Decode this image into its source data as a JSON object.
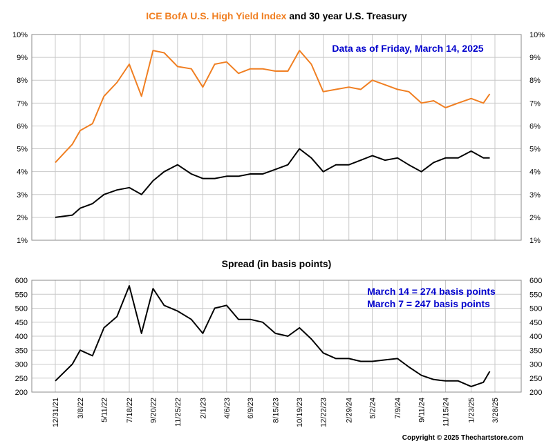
{
  "chart_data": [
    {
      "type": "line",
      "title_parts": [
        {
          "text": "ICE BofA U.S. High Yield Index",
          "color": "#f07f22"
        },
        {
          "text": " and 30 year U.S. Treasury",
          "color": "#000000"
        }
      ],
      "annotation": "Data as of Friday, March 14, 2025",
      "annotation_color": "#0000cc",
      "y_ticks": [
        "1%",
        "2%",
        "3%",
        "4%",
        "5%",
        "6%",
        "7%",
        "8%",
        "9%",
        "10%"
      ],
      "ylim": [
        1,
        10
      ],
      "grid": true,
      "x": [
        "12/31/21",
        "2/15/22",
        "3/8/22",
        "4/10/22",
        "5/11/22",
        "6/15/22",
        "7/18/22",
        "8/20/22",
        "9/20/22",
        "10/20/22",
        "11/25/22",
        "1/1/23",
        "2/1/23",
        "3/5/23",
        "4/6/23",
        "5/8/23",
        "6/9/23",
        "7/12/23",
        "8/15/23",
        "9/18/23",
        "10/19/23",
        "11/20/23",
        "12/22/23",
        "1/25/24",
        "2/29/24",
        "4/1/24",
        "5/2/24",
        "6/5/24",
        "7/9/24",
        "8/8/24",
        "9/11/24",
        "10/14/24",
        "11/15/24",
        "12/19/24",
        "1/23/25",
        "2/25/25",
        "3/14/25"
      ],
      "series": [
        {
          "name": "ICE BofA U.S. High Yield Index",
          "color": "#f07f22",
          "values": [
            4.4,
            5.2,
            5.8,
            6.1,
            7.3,
            7.9,
            8.7,
            7.3,
            9.3,
            9.2,
            8.6,
            8.5,
            7.7,
            8.7,
            8.8,
            8.3,
            8.5,
            8.5,
            8.4,
            8.4,
            9.3,
            8.7,
            7.5,
            7.6,
            7.7,
            7.6,
            8.0,
            7.8,
            7.6,
            7.5,
            7.0,
            7.1,
            6.8,
            7.0,
            7.2,
            7.0,
            7.4
          ]
        },
        {
          "name": "30 year U.S. Treasury",
          "color": "#000000",
          "values": [
            2.0,
            2.1,
            2.4,
            2.6,
            3.0,
            3.2,
            3.3,
            3.0,
            3.6,
            4.0,
            4.3,
            3.9,
            3.7,
            3.7,
            3.8,
            3.8,
            3.9,
            3.9,
            4.1,
            4.3,
            5.0,
            4.6,
            4.0,
            4.3,
            4.3,
            4.5,
            4.7,
            4.5,
            4.6,
            4.3,
            4.0,
            4.4,
            4.6,
            4.6,
            4.9,
            4.6,
            4.6
          ]
        }
      ]
    },
    {
      "type": "line",
      "title": "Spread (in basis points)",
      "annotations": [
        "March 14 = 274 basis points",
        "March 7 = 247 basis points"
      ],
      "annotation_color": "#0000cc",
      "y_ticks": [
        "200",
        "250",
        "300",
        "350",
        "400",
        "450",
        "500",
        "550",
        "600"
      ],
      "ylim": [
        200,
        600
      ],
      "grid": true,
      "x": [
        "12/31/21",
        "2/15/22",
        "3/8/22",
        "4/10/22",
        "5/11/22",
        "6/15/22",
        "7/18/22",
        "8/20/22",
        "9/20/22",
        "10/20/22",
        "11/25/22",
        "1/1/23",
        "2/1/23",
        "3/5/23",
        "4/6/23",
        "5/8/23",
        "6/9/23",
        "7/12/23",
        "8/15/23",
        "9/18/23",
        "10/19/23",
        "11/20/23",
        "12/22/23",
        "1/25/24",
        "2/29/24",
        "4/1/24",
        "5/2/24",
        "6/5/24",
        "7/9/24",
        "8/8/24",
        "9/11/24",
        "10/14/24",
        "11/15/24",
        "12/19/24",
        "1/23/25",
        "2/25/25",
        "3/14/25"
      ],
      "series": [
        {
          "color": "#000000",
          "values": [
            240,
            300,
            350,
            330,
            430,
            470,
            580,
            410,
            570,
            510,
            490,
            460,
            410,
            500,
            510,
            460,
            460,
            450,
            410,
            400,
            430,
            390,
            340,
            320,
            320,
            310,
            310,
            315,
            320,
            290,
            260,
            245,
            240,
            240,
            220,
            235,
            274
          ]
        }
      ]
    }
  ],
  "x_tick_labels": [
    "12/31/21",
    "3/8/22",
    "5/11/22",
    "7/18/22",
    "9/20/22",
    "11/25/22",
    "2/1/23",
    "4/6/23",
    "6/9/23",
    "8/15/23",
    "10/19/23",
    "12/22/23",
    "2/29/24",
    "5/2/24",
    "7/9/24",
    "9/11/24",
    "11/15/24",
    "1/23/25",
    "3/28/25"
  ],
  "footer": "Copyright © 2025 Thechartstore.com"
}
